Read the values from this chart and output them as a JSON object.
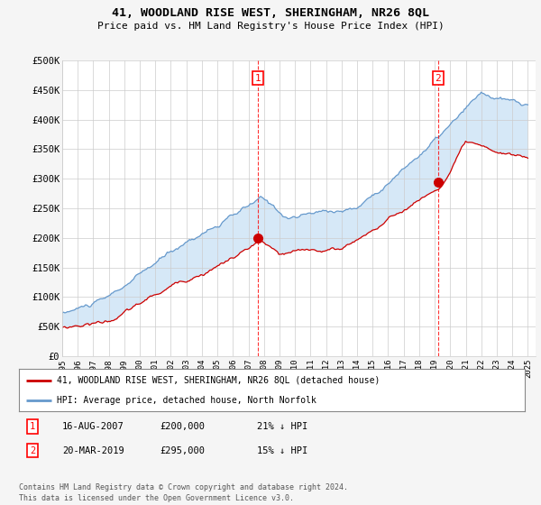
{
  "title": "41, WOODLAND RISE WEST, SHERINGHAM, NR26 8QL",
  "subtitle": "Price paid vs. HM Land Registry's House Price Index (HPI)",
  "background_color": "#f5f5f5",
  "plot_bg_color": "#ffffff",
  "fill_color": "#d6e8f7",
  "ylim": [
    0,
    500000
  ],
  "yticks": [
    0,
    50000,
    100000,
    150000,
    200000,
    250000,
    300000,
    350000,
    400000,
    450000,
    500000
  ],
  "ytick_labels": [
    "£0",
    "£50K",
    "£100K",
    "£150K",
    "£200K",
    "£250K",
    "£300K",
    "£350K",
    "£400K",
    "£450K",
    "£500K"
  ],
  "sale1_date_x": 2007.62,
  "sale1_price": 200000,
  "sale1_label": "1",
  "sale2_date_x": 2019.21,
  "sale2_price": 295000,
  "sale2_label": "2",
  "legend_line1": "41, WOODLAND RISE WEST, SHERINGHAM, NR26 8QL (detached house)",
  "legend_line2": "HPI: Average price, detached house, North Norfolk",
  "footer": "Contains HM Land Registry data © Crown copyright and database right 2024.\nThis data is licensed under the Open Government Licence v3.0.",
  "line_red_color": "#cc0000",
  "line_blue_color": "#6699cc",
  "xmin": 1995.0,
  "xmax": 2025.5,
  "seed_hpi": 10,
  "seed_pp": 20
}
